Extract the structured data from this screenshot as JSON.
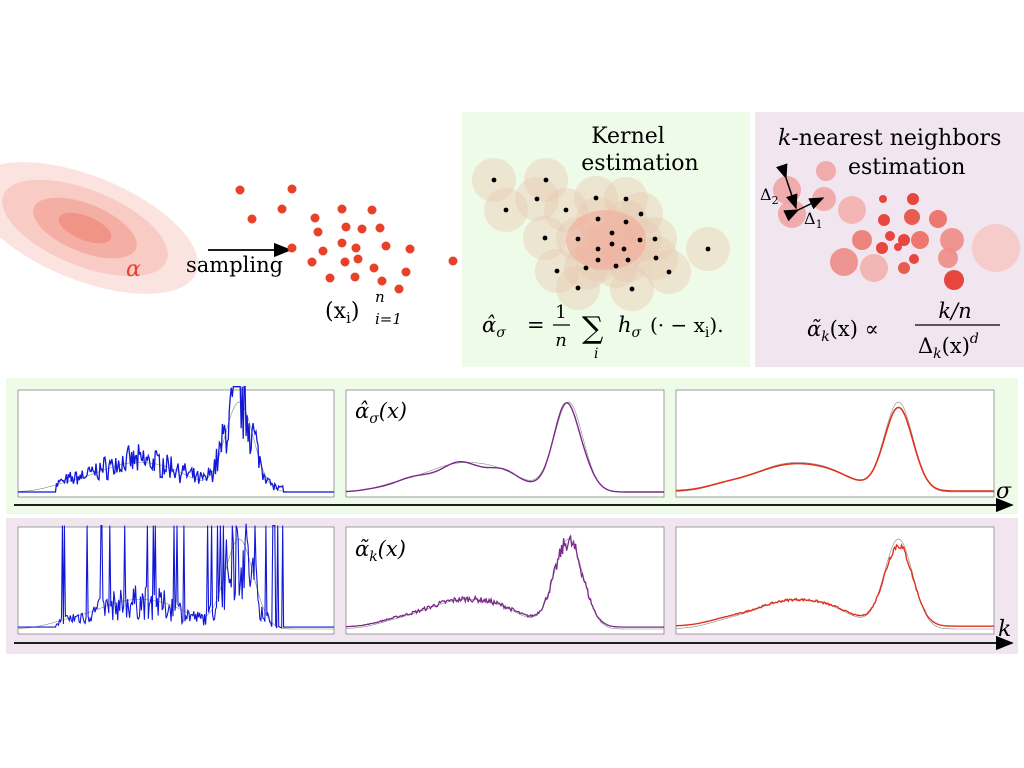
{
  "top": {
    "alpha_label": "α",
    "sampling_label": "sampling",
    "samples_label": "(x",
    "samples_sub": "i",
    "samples_close": ")",
    "samples_sup": "n",
    "samples_range": "i=1",
    "kernel_title_line1": "Kernel",
    "kernel_title_line2": "estimation",
    "kernel_formula_lhs": "α̂",
    "kernel_formula_lhs_sub": "σ",
    "kernel_formula_eq": "=",
    "kernel_formula_num": "1",
    "kernel_formula_den": "n",
    "kernel_formula_sum": "∑",
    "kernel_formula_sum_sub": "i",
    "kernel_formula_rhs": "h",
    "kernel_formula_rhs_sub": "σ",
    "kernel_formula_tail": "(· − x",
    "kernel_formula_tail_sub": "i",
    "kernel_formula_end": ").",
    "knn_title_k": "k",
    "knn_title_rest": "-nearest neighbors",
    "knn_title_line2": "estimation",
    "knn_delta2": "Δ",
    "knn_delta2_sub": "2",
    "knn_delta1": "Δ",
    "knn_delta1_sub": "1",
    "knn_formula_lhs": "α̃",
    "knn_formula_lhs_sub": "k",
    "knn_formula_arg": "(x) ∝",
    "knn_formula_num": "k/n",
    "knn_formula_den": "Δ",
    "knn_formula_den_sub": "k",
    "knn_formula_den_tail": "(x)",
    "knn_formula_den_sup": "d"
  },
  "rows": {
    "sigma_label": "σ",
    "k_label": "k",
    "kernel_panel_label": "α̂",
    "kernel_panel_label_sub": "σ",
    "kernel_panel_label_arg": "(x)",
    "knn_panel_label": "α̃",
    "knn_panel_label_sub": "k",
    "knn_panel_label_arg": "(x)"
  },
  "colors": {
    "sample_red": "#e8412a",
    "green_bg": "#eefbe8",
    "purple_bg": "#f1e5f0",
    "blue": "#1218d8",
    "purple": "#7a2a8a",
    "red": "#e0321e",
    "gray": "#888888"
  }
}
